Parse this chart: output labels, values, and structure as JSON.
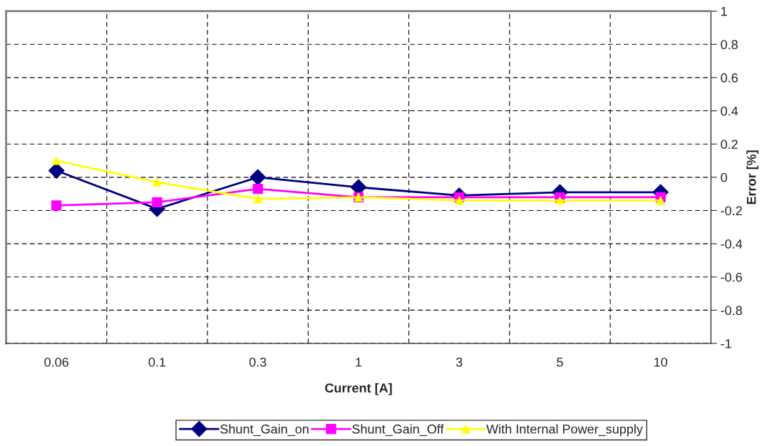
{
  "chart_data": {
    "type": "line",
    "xlabel": "Current [A]",
    "ylabel": "Error [%]",
    "categories": [
      "0.06",
      "0.1",
      "0.3",
      "1",
      "3",
      "5",
      "10"
    ],
    "series": [
      {
        "name": "Shunt_Gain_on",
        "color": "#000080",
        "marker": "diamond",
        "values": [
          0.04,
          -0.19,
          0.0,
          -0.06,
          -0.11,
          -0.09,
          -0.09
        ]
      },
      {
        "name": "Shunt_Gain_Off",
        "color": "#ff00ff",
        "marker": "square",
        "values": [
          -0.17,
          -0.15,
          -0.07,
          -0.12,
          -0.12,
          -0.12,
          -0.12
        ]
      },
      {
        "name": "With Internal Power_supply",
        "color": "#ffff00",
        "marker": "triangle",
        "values": [
          0.1,
          -0.03,
          -0.13,
          -0.12,
          -0.14,
          -0.14,
          -0.14
        ]
      }
    ],
    "ylim": [
      -1,
      1
    ],
    "yticks": [
      1,
      0.8,
      0.6,
      0.4,
      0.2,
      0,
      -0.2,
      -0.4,
      -0.6,
      -0.8,
      -1
    ],
    "grid": true,
    "legend": "bottom",
    "line_style": "solid"
  }
}
